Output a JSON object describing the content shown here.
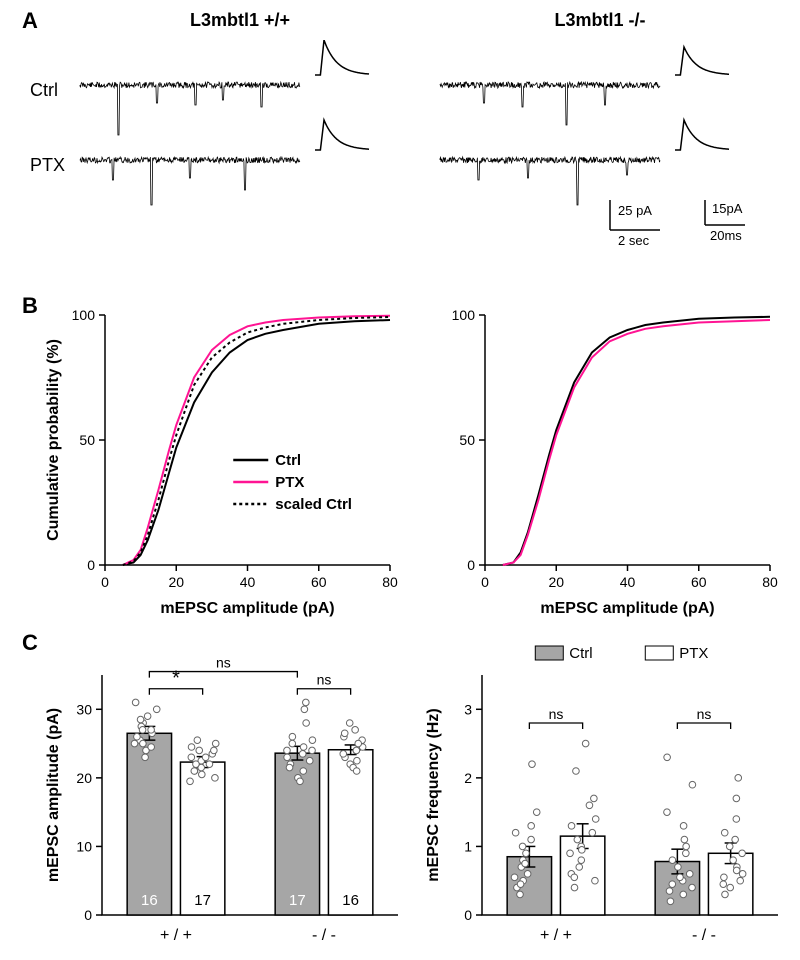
{
  "panels": {
    "A": "A",
    "B": "B",
    "C": "C"
  },
  "genotypes": {
    "wt": "L3mbtl1 +/+",
    "ko": "L3mbtl1 -/-"
  },
  "conditions": {
    "ctrl": "Ctrl",
    "ptx": "PTX"
  },
  "scalebars": {
    "trace_y": "25 pA",
    "trace_x": "2 sec",
    "avg_y": "15pA",
    "avg_x": "20ms"
  },
  "panelB": {
    "type": "line",
    "xlim": [
      0,
      80
    ],
    "ylim": [
      0,
      100
    ],
    "xticks": [
      0,
      20,
      40,
      60,
      80
    ],
    "yticks": [
      0,
      50,
      100
    ],
    "xlabel": "mEPSC amplitude (pA)",
    "ylabel": "Cumulative probability (%)",
    "series_colors": {
      "ctrl": "#000000",
      "ptx": "#ff1493",
      "scaled": "#000000"
    },
    "scaled_dash": "3,3",
    "legend": {
      "ctrl": "Ctrl",
      "ptx": "PTX",
      "scaled": "scaled Ctrl"
    },
    "wt": {
      "ctrl": [
        [
          5,
          0
        ],
        [
          8,
          1
        ],
        [
          10,
          4
        ],
        [
          12,
          10
        ],
        [
          15,
          22
        ],
        [
          18,
          37
        ],
        [
          20,
          47
        ],
        [
          25,
          65
        ],
        [
          30,
          77
        ],
        [
          35,
          85
        ],
        [
          40,
          90
        ],
        [
          45,
          92.5
        ],
        [
          50,
          94
        ],
        [
          60,
          96.5
        ],
        [
          70,
          97.5
        ],
        [
          80,
          98
        ]
      ],
      "ptx": [
        [
          5,
          0
        ],
        [
          8,
          2
        ],
        [
          10,
          6
        ],
        [
          12,
          15
        ],
        [
          15,
          30
        ],
        [
          18,
          46
        ],
        [
          20,
          56
        ],
        [
          25,
          75
        ],
        [
          30,
          86
        ],
        [
          35,
          92
        ],
        [
          40,
          95.5
        ],
        [
          45,
          97
        ],
        [
          50,
          98
        ],
        [
          60,
          99
        ],
        [
          70,
          99.5
        ],
        [
          80,
          99.7
        ]
      ],
      "scaled": [
        [
          5,
          0
        ],
        [
          8,
          1.5
        ],
        [
          10,
          5
        ],
        [
          12,
          12
        ],
        [
          15,
          26
        ],
        [
          18,
          42
        ],
        [
          20,
          52
        ],
        [
          25,
          72
        ],
        [
          30,
          83
        ],
        [
          35,
          89
        ],
        [
          40,
          93
        ],
        [
          45,
          95
        ],
        [
          50,
          96.5
        ],
        [
          60,
          98
        ],
        [
          70,
          98.8
        ],
        [
          80,
          99.2
        ]
      ]
    },
    "ko": {
      "ctrl": [
        [
          5,
          0
        ],
        [
          8,
          1
        ],
        [
          10,
          5
        ],
        [
          12,
          13
        ],
        [
          15,
          28
        ],
        [
          18,
          44
        ],
        [
          20,
          54
        ],
        [
          25,
          73
        ],
        [
          30,
          85
        ],
        [
          35,
          91
        ],
        [
          40,
          94
        ],
        [
          45,
          96
        ],
        [
          50,
          97
        ],
        [
          60,
          98.5
        ],
        [
          70,
          99
        ],
        [
          80,
          99.3
        ]
      ],
      "ptx": [
        [
          5,
          0
        ],
        [
          8,
          1
        ],
        [
          10,
          4
        ],
        [
          12,
          12
        ],
        [
          15,
          26
        ],
        [
          18,
          42
        ],
        [
          20,
          52
        ],
        [
          25,
          71
        ],
        [
          30,
          83
        ],
        [
          35,
          89.5
        ],
        [
          40,
          92.5
        ],
        [
          45,
          94.5
        ],
        [
          50,
          95.5
        ],
        [
          60,
          97
        ],
        [
          70,
          97.5
        ],
        [
          80,
          98
        ]
      ]
    }
  },
  "panelC_left": {
    "type": "bar",
    "ylabel": "mEPSC amplitude (pA)",
    "ylim": [
      0,
      35
    ],
    "yticks": [
      0,
      10,
      20,
      30
    ],
    "groups": [
      "+ / +",
      "- / -"
    ],
    "bar_colors": {
      "ctrl": "#a6a6a6",
      "ptx": "#ffffff"
    },
    "bar_border": "#000000",
    "bars": [
      {
        "group": 0,
        "cond": "ctrl",
        "mean": 26.5,
        "err": 1.0,
        "n": "16",
        "n_color": "#ffffff",
        "points": [
          25.5,
          28,
          26,
          27.5,
          29,
          24,
          27,
          31,
          25,
          30,
          24.5,
          28.5,
          25,
          23,
          26.5,
          27
        ]
      },
      {
        "group": 0,
        "cond": "ptx",
        "mean": 22.3,
        "err": 0.8,
        "n": "17",
        "n_color": "#000000",
        "points": [
          21,
          23,
          20,
          22.5,
          24,
          21.5,
          23.5,
          25,
          19.5,
          22,
          24.5,
          21,
          23,
          20.5,
          22,
          24,
          25.5
        ]
      },
      {
        "group": 1,
        "cond": "ctrl",
        "mean": 23.6,
        "err": 1.0,
        "n": "17",
        "n_color": "#ffffff",
        "points": [
          22,
          24,
          21,
          23.5,
          25,
          20,
          26,
          28,
          22.5,
          24.5,
          30,
          21.5,
          23,
          19.5,
          25.5,
          24,
          31
        ]
      },
      {
        "group": 1,
        "cond": "ptx",
        "mean": 24.1,
        "err": 0.7,
        "n": "16",
        "n_color": "#000000",
        "points": [
          23,
          25,
          22,
          24.5,
          26,
          21.5,
          25.5,
          27,
          22.5,
          24,
          26.5,
          23.5,
          25,
          21,
          24,
          28
        ]
      }
    ],
    "stats": [
      {
        "from": 0,
        "to": 1,
        "y": 33,
        "label": "*"
      },
      {
        "from": 2,
        "to": 3,
        "y": 33,
        "label": "ns"
      },
      {
        "from": 0,
        "to": 2,
        "y": 35.5,
        "label": "ns"
      }
    ]
  },
  "panelC_right": {
    "type": "bar",
    "ylabel": "mEPSC frequency (Hz)",
    "ylim": [
      0,
      3.5
    ],
    "yticks": [
      0,
      1,
      2,
      3
    ],
    "groups": [
      "+ / +",
      "- / -"
    ],
    "bar_colors": {
      "ctrl": "#a6a6a6",
      "ptx": "#ffffff"
    },
    "bar_border": "#000000",
    "legend": {
      "ctrl": "Ctrl",
      "ptx": "PTX"
    },
    "bars": [
      {
        "group": 0,
        "cond": "ctrl",
        "mean": 0.85,
        "err": 0.15,
        "points": [
          0.3,
          0.5,
          0.4,
          0.7,
          0.6,
          0.9,
          1.0,
          1.2,
          0.8,
          1.5,
          1.3,
          0.45,
          0.55,
          0.75,
          2.2,
          1.1
        ]
      },
      {
        "group": 0,
        "cond": "ptx",
        "mean": 1.15,
        "err": 0.18,
        "points": [
          0.4,
          0.6,
          0.5,
          0.8,
          0.7,
          1.0,
          1.2,
          1.4,
          0.9,
          1.6,
          1.3,
          0.55,
          2.5,
          0.95,
          2.1,
          1.7,
          1.1
        ]
      },
      {
        "group": 1,
        "cond": "ctrl",
        "mean": 0.78,
        "err": 0.18,
        "points": [
          0.2,
          0.4,
          0.3,
          0.5,
          0.45,
          0.7,
          0.8,
          1.0,
          0.6,
          1.3,
          1.1,
          0.35,
          2.3,
          0.55,
          1.9,
          1.5,
          0.9
        ]
      },
      {
        "group": 1,
        "cond": "ptx",
        "mean": 0.9,
        "err": 0.15,
        "points": [
          0.3,
          0.5,
          0.4,
          0.6,
          0.55,
          0.8,
          0.9,
          1.1,
          0.7,
          1.4,
          1.2,
          0.45,
          2.0,
          0.65,
          1.7,
          1.0
        ]
      }
    ],
    "stats": [
      {
        "from": 0,
        "to": 1,
        "y": 2.8,
        "label": "ns"
      },
      {
        "from": 2,
        "to": 3,
        "y": 2.8,
        "label": "ns"
      }
    ]
  },
  "colors": {
    "text": "#000000",
    "point_stroke": "#666666",
    "point_fill": "#ffffff"
  }
}
